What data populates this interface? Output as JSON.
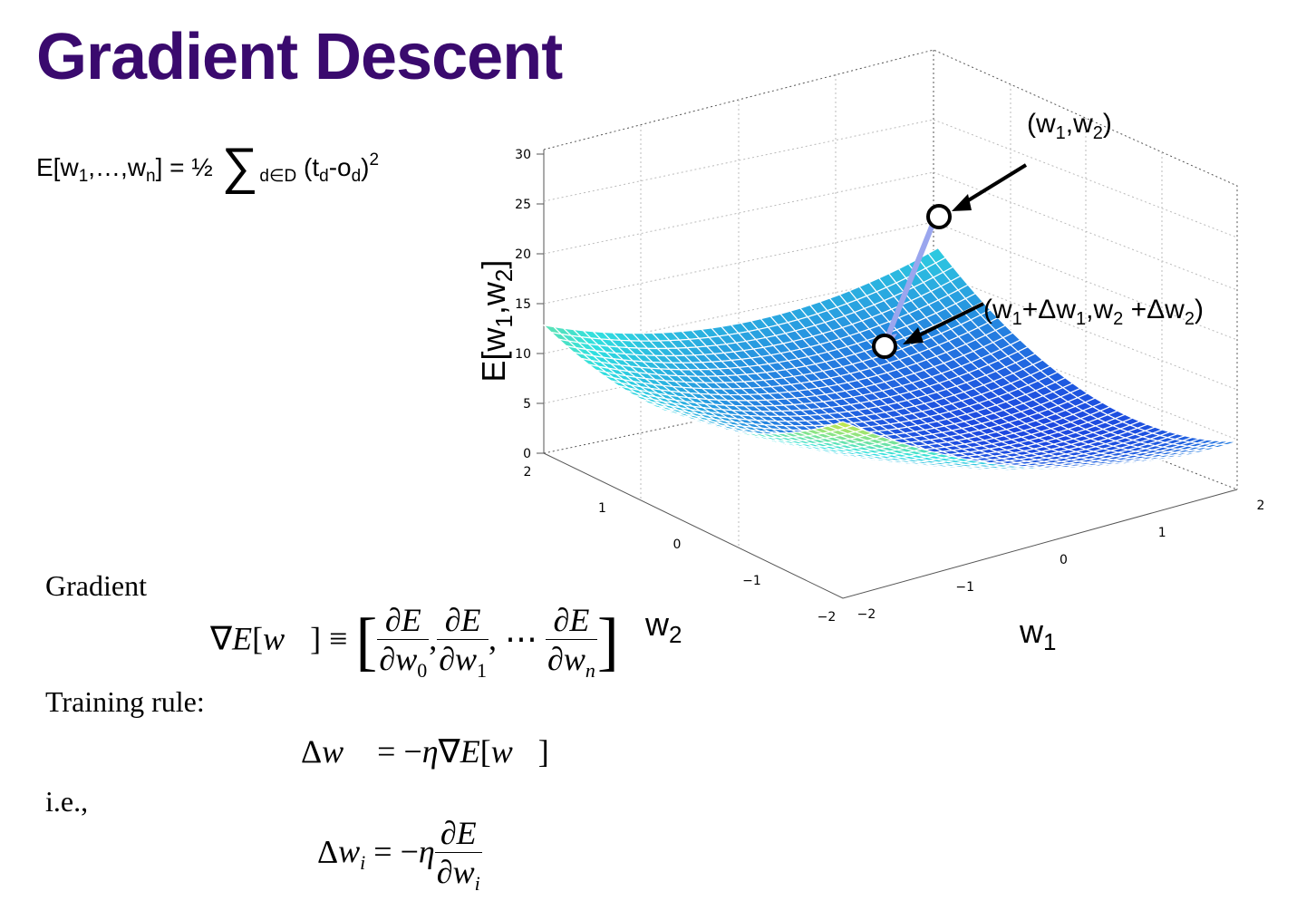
{
  "title": "Gradient Descent",
  "energy_formula": {
    "lhs": "E[w",
    "sub1": "1",
    "mid": ",…,w",
    "subn": "n",
    "rhs": "] = ½ ",
    "sigma": "∑",
    "sum_sub": "d∈D",
    "paren": " (t",
    "td_sub": "d",
    "minus": "-o",
    "od_sub": "d",
    "close": ")",
    "exp": "2"
  },
  "gradient_label": "Gradient",
  "training_rule_label": "Training rule:",
  "ie_label": "i.e.,",
  "plot": {
    "z_ticks": [
      "0",
      "5",
      "10",
      "15",
      "20",
      "25",
      "30"
    ],
    "w2_ticks": [
      "2",
      "1",
      "0",
      "−1",
      "−2"
    ],
    "w1_ticks": [
      "−2",
      "−1",
      "0",
      "1",
      "2"
    ],
    "zlabel": "E[w",
    "zlabel_sub1": "1",
    "zlabel_mid": ",w",
    "zlabel_sub2": "2",
    "zlabel_end": "]",
    "w1_label": "w",
    "w1_sub": "1",
    "w2_label": "w",
    "w2_sub": "2",
    "point_a": {
      "pre": "(w",
      "s1": "1",
      "mid": ",w",
      "s2": "2",
      "post": ")"
    },
    "point_b": {
      "pre": "(w",
      "s1": "1",
      "m1": "+Δw",
      "s2": "1",
      "m2": ",w",
      "s3": "2",
      "m3": " +Δw",
      "s4": "2",
      "post": ")"
    },
    "colors": {
      "high": "#d81e05",
      "mid": "#f7e818",
      "low_mid": "#30e0e0",
      "low": "#1a2ee0",
      "arrow": "#9aa6ee"
    }
  }
}
